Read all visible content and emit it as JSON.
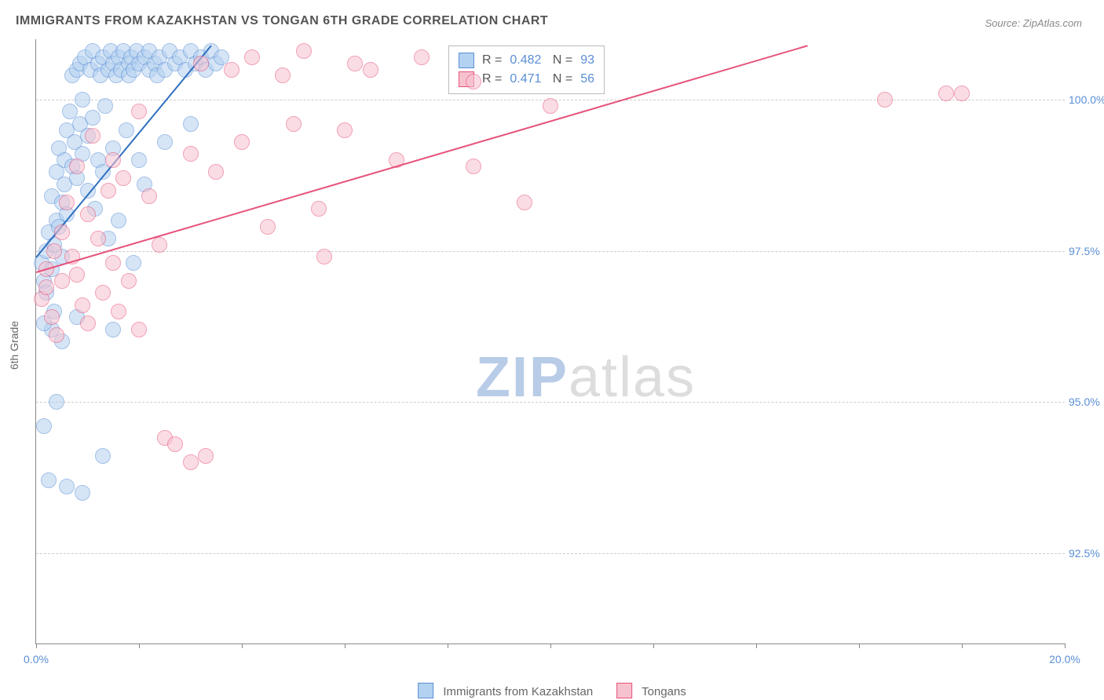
{
  "title": "IMMIGRANTS FROM KAZAKHSTAN VS TONGAN 6TH GRADE CORRELATION CHART",
  "source": "Source: ZipAtlas.com",
  "ylabel": "6th Grade",
  "watermark": {
    "strong": "ZIP",
    "light": "atlas"
  },
  "chart": {
    "type": "scatter",
    "xlim": [
      0,
      20
    ],
    "ylim": [
      91,
      101
    ],
    "xtick_positions": [
      0,
      2,
      4,
      6,
      8,
      10,
      12,
      14,
      16,
      18,
      20
    ],
    "xtick_labels": {
      "0": "0.0%",
      "20": "20.0%"
    },
    "ytick_positions": [
      92.5,
      95.0,
      97.5,
      100.0
    ],
    "ytick_labels": [
      "92.5%",
      "95.0%",
      "97.5%",
      "100.0%"
    ],
    "grid_color": "#cccccc",
    "axis_color": "#888888",
    "background_color": "#ffffff",
    "tick_fontsize": 14,
    "tick_color": "#5b8fd6",
    "label_fontsize": 14,
    "label_color": "#666666",
    "marker_radius": 9,
    "marker_opacity": 0.55,
    "trend_line_width": 2,
    "series": [
      {
        "name": "Immigrants from Kazakhstan",
        "fill": "#b3d1f0",
        "stroke": "#5b8fd6",
        "line_color": "#2f6fc0",
        "R": "0.482",
        "N": "93",
        "trend": {
          "x0": 0.0,
          "y0": 97.4,
          "x1": 3.4,
          "y1": 100.9
        },
        "points": [
          [
            0.1,
            97.3
          ],
          [
            0.15,
            97.0
          ],
          [
            0.2,
            97.5
          ],
          [
            0.2,
            96.8
          ],
          [
            0.25,
            97.8
          ],
          [
            0.3,
            97.2
          ],
          [
            0.3,
            98.4
          ],
          [
            0.35,
            97.6
          ],
          [
            0.35,
            96.5
          ],
          [
            0.4,
            98.0
          ],
          [
            0.4,
            98.8
          ],
          [
            0.45,
            97.9
          ],
          [
            0.45,
            99.2
          ],
          [
            0.5,
            98.3
          ],
          [
            0.5,
            97.4
          ],
          [
            0.55,
            99.0
          ],
          [
            0.55,
            98.6
          ],
          [
            0.6,
            99.5
          ],
          [
            0.6,
            98.1
          ],
          [
            0.65,
            99.8
          ],
          [
            0.7,
            98.9
          ],
          [
            0.7,
            100.4
          ],
          [
            0.75,
            99.3
          ],
          [
            0.8,
            100.5
          ],
          [
            0.8,
            98.7
          ],
          [
            0.85,
            99.6
          ],
          [
            0.85,
            100.6
          ],
          [
            0.9,
            99.1
          ],
          [
            0.9,
            100.0
          ],
          [
            0.95,
            100.7
          ],
          [
            1.0,
            99.4
          ],
          [
            1.0,
            98.5
          ],
          [
            1.05,
            100.5
          ],
          [
            1.1,
            99.7
          ],
          [
            1.1,
            100.8
          ],
          [
            1.15,
            98.2
          ],
          [
            1.2,
            100.6
          ],
          [
            1.2,
            99.0
          ],
          [
            1.25,
            100.4
          ],
          [
            1.3,
            100.7
          ],
          [
            1.3,
            98.8
          ],
          [
            1.35,
            99.9
          ],
          [
            1.4,
            100.5
          ],
          [
            1.4,
            97.7
          ],
          [
            1.45,
            100.8
          ],
          [
            1.5,
            99.2
          ],
          [
            1.5,
            100.6
          ],
          [
            1.55,
            100.4
          ],
          [
            1.6,
            100.7
          ],
          [
            1.6,
            98.0
          ],
          [
            1.65,
            100.5
          ],
          [
            1.7,
            100.8
          ],
          [
            1.75,
            99.5
          ],
          [
            1.8,
            100.6
          ],
          [
            1.8,
            100.4
          ],
          [
            1.85,
            100.7
          ],
          [
            1.9,
            100.5
          ],
          [
            1.95,
            100.8
          ],
          [
            2.0,
            100.6
          ],
          [
            2.0,
            99.0
          ],
          [
            2.1,
            100.7
          ],
          [
            2.1,
            98.6
          ],
          [
            2.2,
            100.5
          ],
          [
            2.2,
            100.8
          ],
          [
            2.3,
            100.6
          ],
          [
            2.35,
            100.4
          ],
          [
            2.4,
            100.7
          ],
          [
            2.5,
            100.5
          ],
          [
            2.5,
            99.3
          ],
          [
            2.6,
            100.8
          ],
          [
            2.7,
            100.6
          ],
          [
            2.8,
            100.7
          ],
          [
            2.9,
            100.5
          ],
          [
            3.0,
            100.8
          ],
          [
            3.0,
            99.6
          ],
          [
            3.1,
            100.6
          ],
          [
            3.2,
            100.7
          ],
          [
            3.3,
            100.5
          ],
          [
            3.4,
            100.8
          ],
          [
            3.5,
            100.6
          ],
          [
            3.6,
            100.7
          ],
          [
            0.3,
            96.2
          ],
          [
            0.5,
            96.0
          ],
          [
            0.4,
            95.0
          ],
          [
            0.15,
            94.6
          ],
          [
            1.3,
            94.1
          ],
          [
            0.6,
            93.6
          ],
          [
            0.9,
            93.5
          ],
          [
            0.25,
            93.7
          ],
          [
            0.15,
            96.3
          ],
          [
            0.8,
            96.4
          ],
          [
            1.5,
            96.2
          ],
          [
            1.9,
            97.3
          ]
        ]
      },
      {
        "name": "Tongans",
        "fill": "#f7c2cf",
        "stroke": "#e6537a",
        "line_color": "#e6537a",
        "R": "0.471",
        "N": "56",
        "trend": {
          "x0": 0.0,
          "y0": 97.15,
          "x1": 15.0,
          "y1": 100.9
        },
        "points": [
          [
            0.1,
            96.7
          ],
          [
            0.2,
            96.9
          ],
          [
            0.2,
            97.2
          ],
          [
            0.3,
            96.4
          ],
          [
            0.35,
            97.5
          ],
          [
            0.4,
            96.1
          ],
          [
            0.5,
            97.8
          ],
          [
            0.5,
            97.0
          ],
          [
            0.6,
            98.3
          ],
          [
            0.7,
            97.4
          ],
          [
            0.8,
            98.9
          ],
          [
            0.8,
            97.1
          ],
          [
            0.9,
            96.6
          ],
          [
            1.0,
            98.1
          ],
          [
            1.0,
            96.3
          ],
          [
            1.1,
            99.4
          ],
          [
            1.2,
            97.7
          ],
          [
            1.3,
            96.8
          ],
          [
            1.4,
            98.5
          ],
          [
            1.5,
            97.3
          ],
          [
            1.5,
            99.0
          ],
          [
            1.6,
            96.5
          ],
          [
            1.7,
            98.7
          ],
          [
            1.8,
            97.0
          ],
          [
            2.0,
            99.8
          ],
          [
            2.0,
            96.2
          ],
          [
            2.2,
            98.4
          ],
          [
            2.4,
            97.6
          ],
          [
            2.5,
            94.4
          ],
          [
            2.7,
            94.3
          ],
          [
            3.0,
            99.1
          ],
          [
            3.0,
            94.0
          ],
          [
            3.2,
            100.6
          ],
          [
            3.3,
            94.1
          ],
          [
            3.5,
            98.8
          ],
          [
            3.8,
            100.5
          ],
          [
            4.0,
            99.3
          ],
          [
            4.2,
            100.7
          ],
          [
            4.5,
            97.9
          ],
          [
            4.8,
            100.4
          ],
          [
            5.0,
            99.6
          ],
          [
            5.2,
            100.8
          ],
          [
            5.5,
            98.2
          ],
          [
            5.6,
            97.4
          ],
          [
            6.0,
            99.5
          ],
          [
            6.2,
            100.6
          ],
          [
            6.5,
            100.5
          ],
          [
            7.0,
            99.0
          ],
          [
            7.5,
            100.7
          ],
          [
            8.5,
            100.3
          ],
          [
            8.5,
            98.9
          ],
          [
            9.5,
            98.3
          ],
          [
            10.0,
            99.9
          ],
          [
            16.5,
            100.0
          ],
          [
            17.7,
            100.1
          ],
          [
            18.0,
            100.1
          ]
        ]
      }
    ]
  },
  "legend": {
    "series1": "Immigrants from Kazakhstan",
    "series2": "Tongans"
  }
}
